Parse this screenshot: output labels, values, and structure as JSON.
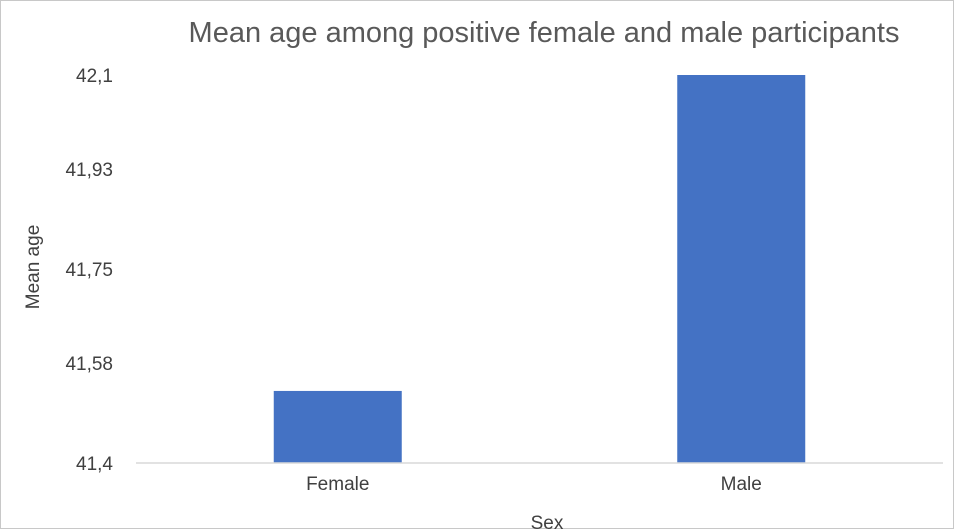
{
  "chart_data": {
    "type": "bar",
    "title": "Mean age among positive female and male participants",
    "xlabel": "Sex",
    "ylabel": "Mean age",
    "categories": [
      "Female",
      "Male"
    ],
    "values": [
      41.53,
      42.1
    ],
    "ylim": [
      41.4,
      42.1
    ],
    "yticks": [
      41.4,
      41.58,
      41.75,
      41.93,
      42.1
    ],
    "ytick_labels": [
      "41,4",
      "41,58",
      "41,75",
      "41,93",
      "42,1"
    ],
    "grid": false,
    "legend": "none",
    "bar_color": "#4472C4",
    "axis_color": "#d9d9d9"
  }
}
